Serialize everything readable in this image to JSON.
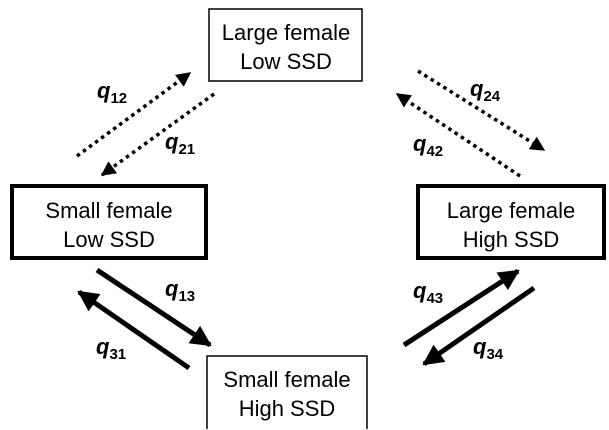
{
  "states": {
    "s2": {
      "line1": "Large female",
      "line2": "Low SSD"
    },
    "s1": {
      "line1": "Small female",
      "line2": "Low SSD"
    },
    "s4": {
      "line1": "Large female",
      "line2": "High SSD"
    },
    "s3": {
      "line1": "Small female",
      "line2": "High SSD"
    }
  },
  "rates": {
    "q12": {
      "symbol": "q",
      "sub": "12"
    },
    "q21": {
      "symbol": "q",
      "sub": "21"
    },
    "q24": {
      "symbol": "q",
      "sub": "24"
    },
    "q42": {
      "symbol": "q",
      "sub": "42"
    },
    "q13": {
      "symbol": "q",
      "sub": "13"
    },
    "q31": {
      "symbol": "q",
      "sub": "31"
    },
    "q43": {
      "symbol": "q",
      "sub": "43"
    },
    "q34": {
      "symbol": "q",
      "sub": "34"
    }
  },
  "colors": {
    "ink": "#000000",
    "background": "#ffffff"
  }
}
